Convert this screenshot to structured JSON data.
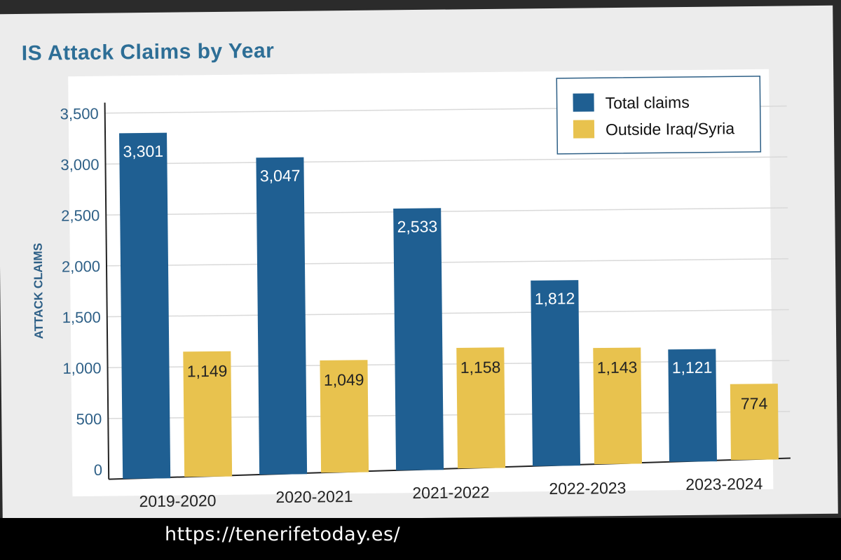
{
  "chart_data": {
    "type": "bar",
    "title": "IS Attack Claims by Year",
    "ylabel": "ATTACK CLAIMS",
    "xlabel": "",
    "ylim": [
      0,
      3500
    ],
    "yticks": [
      "0",
      "500",
      "1,000",
      "1,500",
      "2,000",
      "2,500",
      "3,000",
      "3,500"
    ],
    "categories": [
      "2019-2020",
      "2020-2021",
      "2021-2022",
      "2022-2023",
      "2023-2024"
    ],
    "series": [
      {
        "name": "Total claims",
        "color": "#1f5f92",
        "values": [
          3301,
          3047,
          2533,
          1812,
          1121
        ],
        "labels": [
          "3,301",
          "3,047",
          "2,533",
          "1,812",
          "1,121"
        ]
      },
      {
        "name": "Outside Iraq/Syria",
        "color": "#e8c24e",
        "values": [
          1149,
          1049,
          1158,
          1143,
          774
        ],
        "labels": [
          "1,149",
          "1,049",
          "1,158",
          "1,143",
          "774"
        ]
      }
    ],
    "legend": "top-right",
    "grid": true
  },
  "footer": {
    "url": "https://tenerifetoday.es/"
  },
  "colors": {
    "title": "#2d6e96",
    "axis_text": "#2d5f86",
    "grid": "#d9d9d9"
  }
}
